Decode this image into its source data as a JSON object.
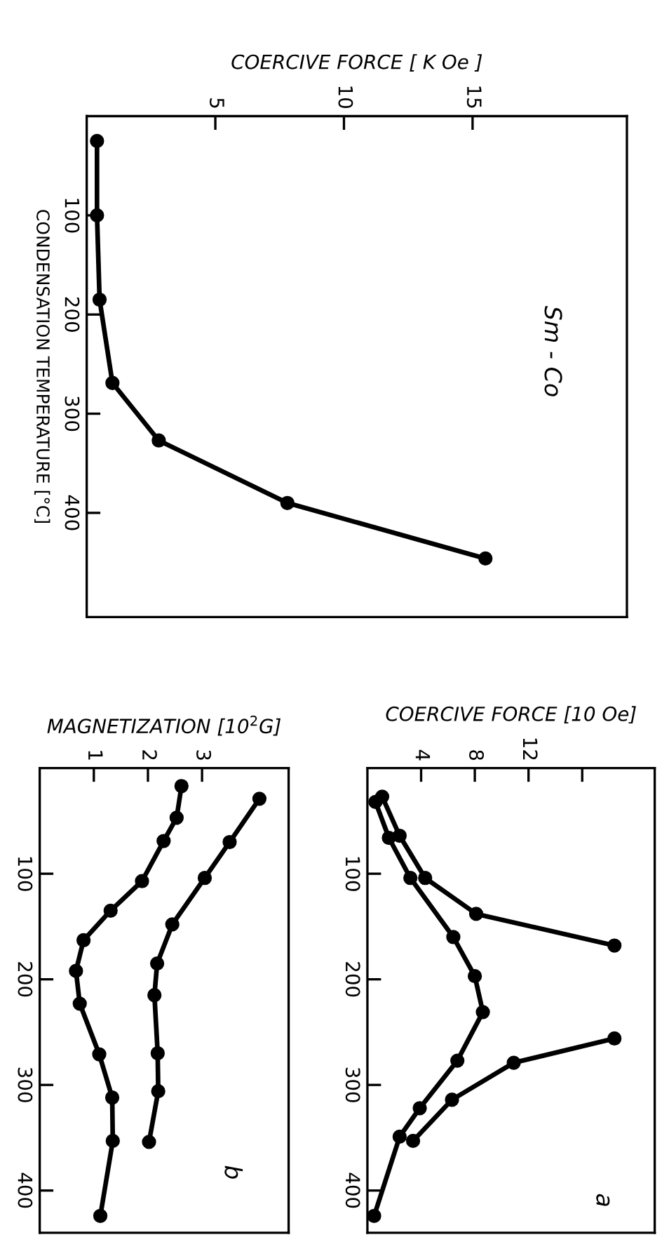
{
  "chart_data": [
    {
      "type": "line",
      "ylabel": "CONDENSATION TEMPERATURE [°C]",
      "xlabel": "COERCIVE FORCE [ K Oe ]",
      "marker": "circle",
      "line_style": "solid",
      "ylim": [
        505,
        0
      ],
      "yticks": [
        100,
        200,
        300,
        400
      ],
      "xlim": [
        0,
        21
      ],
      "xticks": [
        5,
        10,
        15
      ],
      "annotations": [
        "Sm - Co"
      ],
      "series": [
        {
          "color": "#000000",
          "x": [
            0.4,
            0.4,
            0.5,
            1.0,
            2.8,
            7.8,
            15.5
          ],
          "values": [
            25,
            100,
            185,
            269,
            327,
            390,
            446
          ]
        }
      ]
    },
    {
      "type": "line",
      "xlabel": "COERCIVE FORCE [10 Oe]",
      "marker": "circle",
      "line_style": "solid",
      "ylim": [
        440,
        0
      ],
      "yticks": [
        100,
        200,
        300,
        400
      ],
      "xlim": [
        0,
        21.4
      ],
      "xticks": [
        4,
        8,
        12,
        {
          "value": 16,
          "label": null
        }
      ],
      "annotations": [
        "a"
      ],
      "series": [
        {
          "color": "#000000",
          "x": [
            1.1,
            2.4,
            4.3,
            8.1,
            18.4
          ],
          "values": [
            27,
            64,
            104,
            138,
            168
          ]
        },
        {
          "color": "#000000",
          "x": [
            18.4,
            10.9,
            6.3,
            3.4
          ],
          "values": [
            256,
            279,
            314,
            353
          ]
        },
        {
          "color": "#000000",
          "x": [
            0.6,
            1.6,
            3.2,
            6.4,
            8.0,
            8.6,
            6.7,
            3.9,
            2.4,
            0.5
          ],
          "values": [
            32,
            66,
            104,
            160,
            197,
            231,
            277,
            322,
            349,
            424
          ]
        }
      ]
    },
    {
      "type": "line",
      "xlabel": "MAGNETIZATION [10$^{2}$G]",
      "marker": "circle",
      "line_style": "solid",
      "ylim": [
        440,
        0
      ],
      "yticks": [
        100,
        200,
        300,
        400
      ],
      "xlim": [
        0,
        4.6
      ],
      "xticks": [
        1,
        2,
        3
      ],
      "annotations": [
        "b"
      ],
      "series": [
        {
          "color": "#000000",
          "x": [
            4.06,
            3.51,
            3.05,
            2.45,
            2.17,
            2.12,
            2.18,
            2.19,
            2.02
          ],
          "values": [
            29,
            70,
            104,
            148,
            185,
            215,
            270,
            306,
            354
          ]
        },
        {
          "color": "#000000",
          "x": [
            2.62,
            2.53,
            2.29,
            1.89,
            1.31,
            0.81,
            0.67,
            0.74,
            1.1,
            1.34,
            1.35,
            1.12
          ],
          "values": [
            17,
            47,
            69,
            107,
            135,
            163,
            192,
            223,
            271,
            312,
            353,
            424
          ]
        }
      ]
    }
  ]
}
